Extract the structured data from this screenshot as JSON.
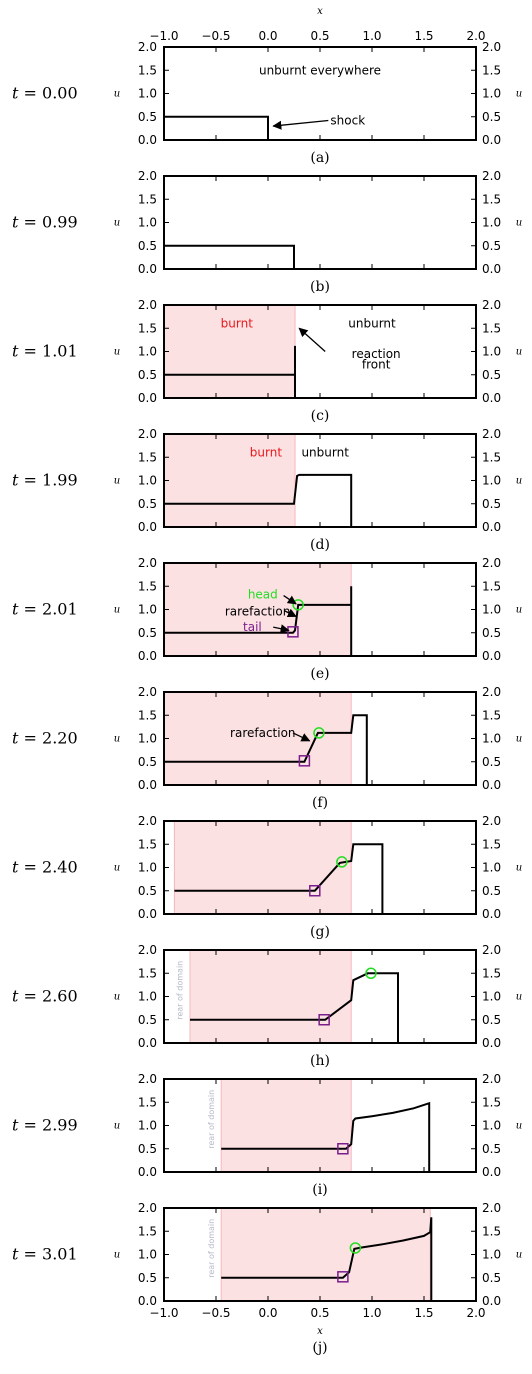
{
  "colors": {
    "burnt_fill": "#fce1e3",
    "burnt_edge": "#f6b7bd",
    "line": "#000000",
    "head_marker": "#22dd22",
    "tail_marker": "#7a1e8c",
    "burnt_text": "#e8191c",
    "head_text": "#22dd22",
    "tail_text": "#7a1e8c",
    "rear_text": "#b7b7c8"
  },
  "chart_data": [
    {
      "id": "a",
      "type": "line",
      "t_label": "t = 0.00",
      "caption": "(a)",
      "xlabel": "x",
      "ylabel": "u",
      "xlim": [
        -1,
        2
      ],
      "ylim": [
        0,
        2
      ],
      "x_ticks": [
        "−1.0",
        "−0.5",
        "0.0",
        "0.5",
        "1.0",
        "1.5",
        "2.0"
      ],
      "y_ticks": [
        "0.0",
        "0.5",
        "1.0",
        "1.5",
        "2.0"
      ],
      "show_top_x_ticks": true,
      "show_bottom_x_ticks": false,
      "series": [
        {
          "x": [
            -1,
            0,
            0
          ],
          "y": [
            0.5,
            0.5,
            0
          ]
        }
      ],
      "burnt": null,
      "annotations": [
        {
          "text": "unburnt everywhere",
          "x": 0.5,
          "y": 1.5,
          "color": "#000000"
        },
        {
          "text": "shock",
          "x": 0.6,
          "y": 0.42,
          "color": "#000000",
          "arrow_to": [
            0.05,
            0.3
          ]
        }
      ],
      "head": null,
      "tail": null
    },
    {
      "id": "b",
      "type": "line",
      "t_label": "t = 0.99",
      "caption": "(b)",
      "xlabel": "",
      "ylabel": "u",
      "xlim": [
        -1,
        2
      ],
      "ylim": [
        0,
        2
      ],
      "x_ticks": [
        "−1.0",
        "−0.5",
        "0.0",
        "0.5",
        "1.0",
        "1.5",
        "2.0"
      ],
      "y_ticks": [
        "0.0",
        "0.5",
        "1.0",
        "1.5",
        "2.0"
      ],
      "show_top_x_ticks": false,
      "show_bottom_x_ticks": false,
      "series": [
        {
          "x": [
            -1,
            0.25,
            0.25
          ],
          "y": [
            0.5,
            0.5,
            0
          ]
        }
      ],
      "burnt": null,
      "annotations": [],
      "head": null,
      "tail": null
    },
    {
      "id": "c",
      "type": "line",
      "t_label": "t = 1.01",
      "caption": "(c)",
      "xlabel": "",
      "ylabel": "u",
      "xlim": [
        -1,
        2
      ],
      "ylim": [
        0,
        2
      ],
      "x_ticks": [
        "−1.0",
        "−0.5",
        "0.0",
        "0.5",
        "1.0",
        "1.5",
        "2.0"
      ],
      "y_ticks": [
        "0.0",
        "0.5",
        "1.0",
        "1.5",
        "2.0"
      ],
      "show_top_x_ticks": false,
      "show_bottom_x_ticks": false,
      "series": [
        {
          "x": [
            -1,
            0.26,
            0.26,
            0.26
          ],
          "y": [
            0.5,
            0.5,
            1.12,
            0
          ]
        }
      ],
      "burnt": [
        -1,
        0.26
      ],
      "annotations": [
        {
          "text": "burnt",
          "x": -0.3,
          "y": 1.6,
          "color": "#e8191c"
        },
        {
          "text": "unburnt",
          "x": 1.0,
          "y": 1.6,
          "color": "#000000"
        },
        {
          "text": "reaction",
          "x": 1.04,
          "y": 0.95,
          "color": "#000000",
          "arrow_from": [
            0.55,
            1.0
          ],
          "arrow_to": [
            0.3,
            1.5
          ]
        },
        {
          "text": "front",
          "x": 1.04,
          "y": 0.72,
          "color": "#000000"
        }
      ],
      "head": null,
      "tail": null
    },
    {
      "id": "d",
      "type": "line",
      "t_label": "t = 1.99",
      "caption": "(d)",
      "xlabel": "",
      "ylabel": "u",
      "xlim": [
        -1,
        2
      ],
      "ylim": [
        0,
        2
      ],
      "x_ticks": [
        "−1.0",
        "−0.5",
        "0.0",
        "0.5",
        "1.0",
        "1.5",
        "2.0"
      ],
      "y_ticks": [
        "0.0",
        "0.5",
        "1.0",
        "1.5",
        "2.0"
      ],
      "show_top_x_ticks": false,
      "show_bottom_x_ticks": false,
      "series": [
        {
          "x": [
            -1,
            0.25,
            0.28,
            0.3,
            0.8,
            0.8
          ],
          "y": [
            0.5,
            0.5,
            1.1,
            1.12,
            1.12,
            0
          ]
        }
      ],
      "burnt": [
        -1,
        0.26
      ],
      "annotations": [
        {
          "text": "burnt",
          "x": -0.02,
          "y": 1.6,
          "color": "#e8191c"
        },
        {
          "text": "unburnt",
          "x": 0.55,
          "y": 1.6,
          "color": "#000000"
        }
      ],
      "head": null,
      "tail": null
    },
    {
      "id": "e",
      "type": "line",
      "t_label": "t = 2.01",
      "caption": "(e)",
      "xlabel": "",
      "ylabel": "u",
      "xlim": [
        -1,
        2
      ],
      "ylim": [
        0,
        2
      ],
      "x_ticks": [
        "−1.0",
        "−0.5",
        "0.0",
        "0.5",
        "1.0",
        "1.5",
        "2.0"
      ],
      "y_ticks": [
        "0.0",
        "0.5",
        "1.0",
        "1.5",
        "2.0"
      ],
      "show_top_x_ticks": false,
      "show_bottom_x_ticks": false,
      "series": [
        {
          "x": [
            -1,
            0.24,
            0.26,
            0.29,
            0.8,
            0.8,
            0.8
          ],
          "y": [
            0.5,
            0.5,
            0.55,
            1.1,
            1.1,
            1.5,
            0
          ]
        }
      ],
      "burnt": [
        -1,
        0.8
      ],
      "annotations": [
        {
          "text": "head",
          "x": -0.05,
          "y": 1.32,
          "color": "#22dd22",
          "arrow_from": [
            0.15,
            1.3
          ],
          "arrow_to": [
            0.27,
            1.12
          ]
        },
        {
          "text": "rarefaction",
          "x": -0.1,
          "y": 0.96,
          "color": "#000000",
          "arrow_from": [
            0.16,
            0.97
          ],
          "arrow_to": [
            0.27,
            0.85
          ]
        },
        {
          "text": "tail",
          "x": -0.15,
          "y": 0.62,
          "color": "#7a1e8c",
          "arrow_from": [
            0.05,
            0.62
          ],
          "arrow_to": [
            0.2,
            0.55
          ]
        }
      ],
      "head": [
        0.29,
        1.1
      ],
      "tail": [
        0.24,
        0.52
      ]
    },
    {
      "id": "f",
      "type": "line",
      "t_label": "t = 2.20",
      "caption": "(f)",
      "xlabel": "",
      "ylabel": "u",
      "xlim": [
        -1,
        2
      ],
      "ylim": [
        0,
        2
      ],
      "x_ticks": [
        "−1.0",
        "−0.5",
        "0.0",
        "0.5",
        "1.0",
        "1.5",
        "2.0"
      ],
      "y_ticks": [
        "0.0",
        "0.5",
        "1.0",
        "1.5",
        "2.0"
      ],
      "show_top_x_ticks": false,
      "show_bottom_x_ticks": false,
      "series": [
        {
          "x": [
            -1,
            0.35,
            0.48,
            0.8,
            0.82,
            0.95,
            0.95
          ],
          "y": [
            0.5,
            0.5,
            1.12,
            1.12,
            1.5,
            1.5,
            0
          ]
        }
      ],
      "burnt": [
        -1,
        0.8
      ],
      "annotations": [
        {
          "text": "rarefaction",
          "x": -0.05,
          "y": 1.12,
          "color": "#000000",
          "arrow_from": [
            0.24,
            1.12
          ],
          "arrow_to": [
            0.4,
            0.95
          ]
        }
      ],
      "head": [
        0.49,
        1.12
      ],
      "tail": [
        0.35,
        0.52
      ]
    },
    {
      "id": "g",
      "type": "line",
      "t_label": "t = 2.40",
      "caption": "(g)",
      "xlabel": "",
      "ylabel": "u",
      "xlim": [
        -1,
        2
      ],
      "ylim": [
        0,
        2
      ],
      "x_ticks": [
        "−1.0",
        "−0.5",
        "0.0",
        "0.5",
        "1.0",
        "1.5",
        "2.0"
      ],
      "y_ticks": [
        "0.0",
        "0.5",
        "1.0",
        "1.5",
        "2.0"
      ],
      "show_top_x_ticks": false,
      "show_bottom_x_ticks": false,
      "series": [
        {
          "x": [
            -0.9,
            0.45,
            0.69,
            0.8,
            0.82,
            1.1,
            1.1
          ],
          "y": [
            0.5,
            0.5,
            1.1,
            1.14,
            1.5,
            1.5,
            0
          ]
        }
      ],
      "burnt": [
        -0.9,
        0.8
      ],
      "annotations": [],
      "head": [
        0.71,
        1.12
      ],
      "tail": [
        0.45,
        0.5
      ]
    },
    {
      "id": "h",
      "type": "line",
      "t_label": "t = 2.60",
      "caption": "(h)",
      "xlabel": "",
      "ylabel": "u",
      "xlim": [
        -1,
        2
      ],
      "ylim": [
        0,
        2
      ],
      "x_ticks": [
        "−1.0",
        "−0.5",
        "0.0",
        "0.5",
        "1.0",
        "1.5",
        "2.0"
      ],
      "y_ticks": [
        "0.0",
        "0.5",
        "1.0",
        "1.5",
        "2.0"
      ],
      "show_top_x_ticks": false,
      "show_bottom_x_ticks": false,
      "series": [
        {
          "x": [
            -0.75,
            0.55,
            0.8,
            0.82,
            0.96,
            1.25,
            1.25
          ],
          "y": [
            0.5,
            0.5,
            0.92,
            1.35,
            1.5,
            1.5,
            0
          ]
        }
      ],
      "burnt": [
        -0.75,
        0.8
      ],
      "annotations": [
        {
          "text": "rear of domain",
          "x": -0.82,
          "y": 0.5,
          "color": "#b7b7c8",
          "vertical": true
        }
      ],
      "head": [
        0.99,
        1.5
      ],
      "tail": [
        0.54,
        0.5
      ]
    },
    {
      "id": "i",
      "type": "line",
      "t_label": "t = 2.99",
      "caption": "(i)",
      "xlabel": "",
      "ylabel": "u",
      "xlim": [
        -1,
        2
      ],
      "ylim": [
        0,
        2
      ],
      "x_ticks": [
        "−1.0",
        "−0.5",
        "0.0",
        "0.5",
        "1.0",
        "1.5",
        "2.0"
      ],
      "y_ticks": [
        "0.0",
        "0.5",
        "1.0",
        "1.5",
        "2.0"
      ],
      "show_top_x_ticks": false,
      "show_bottom_x_ticks": false,
      "series": [
        {
          "x": [
            -0.45,
            0.75,
            0.8,
            0.82,
            0.84,
            1.0,
            1.2,
            1.4,
            1.55,
            1.55
          ],
          "y": [
            0.5,
            0.5,
            0.6,
            1.1,
            1.15,
            1.2,
            1.27,
            1.37,
            1.48,
            0
          ]
        }
      ],
      "burnt": [
        -0.45,
        0.8
      ],
      "annotations": [
        {
          "text": "rear of domain",
          "x": -0.52,
          "y": 0.5,
          "color": "#b7b7c8",
          "vertical": true
        }
      ],
      "head": null,
      "tail": [
        0.72,
        0.5
      ]
    },
    {
      "id": "j",
      "type": "line",
      "t_label": "t = 3.01",
      "caption": "(j)",
      "xlabel": "x",
      "ylabel": "u",
      "xlim": [
        -1,
        2
      ],
      "ylim": [
        0,
        2
      ],
      "x_ticks": [
        "−1.0",
        "−0.5",
        "0.0",
        "0.5",
        "1.0",
        "1.5",
        "2.0"
      ],
      "y_ticks": [
        "0.0",
        "0.5",
        "1.0",
        "1.5",
        "2.0"
      ],
      "show_top_x_ticks": false,
      "show_bottom_x_ticks": true,
      "series": [
        {
          "x": [
            -0.45,
            0.72,
            0.78,
            0.83,
            0.9,
            1.1,
            1.3,
            1.5,
            1.56,
            1.57,
            1.57
          ],
          "y": [
            0.5,
            0.5,
            0.62,
            1.12,
            1.15,
            1.22,
            1.3,
            1.4,
            1.48,
            1.8,
            0
          ]
        }
      ],
      "burnt": [
        -0.45,
        1.56
      ],
      "annotations": [
        {
          "text": "rear of domain",
          "x": -0.52,
          "y": 0.5,
          "color": "#b7b7c8",
          "vertical": true
        }
      ],
      "head": [
        0.84,
        1.14
      ],
      "tail": [
        0.72,
        0.52
      ]
    }
  ]
}
